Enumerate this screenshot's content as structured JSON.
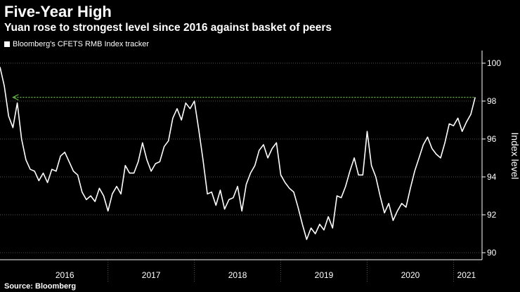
{
  "colors": {
    "background": "#000000",
    "series_line": "#ffffff",
    "grid": "#555555",
    "arrow": "#6cc04a"
  },
  "title": "Five-Year High",
  "subtitle": "Yuan rose to strongest level since 2016 against basket of peers",
  "source": "Source: Bloomberg",
  "chart_data": {
    "type": "line",
    "ylabel": "Index level",
    "ylim": [
      90,
      100
    ],
    "yticks": [
      "90",
      "92",
      "94",
      "96",
      "98",
      "100"
    ],
    "ytick_values": [
      90,
      92,
      94,
      96,
      98,
      100
    ],
    "xlim": [
      2015.75,
      2021.33
    ],
    "x_labels": [
      "2016",
      "2017",
      "2018",
      "2019",
      "2020",
      "2021"
    ],
    "x_label_positions": [
      2016.5,
      2017.5,
      2018.5,
      2019.5,
      2020.5,
      2021.15
    ],
    "x_separators": [
      2017.0,
      2018.0,
      2019.0,
      2020.0,
      2021.0
    ],
    "grid": "horizontal dotted",
    "reference_line": {
      "y": 98.2,
      "x_from": 2015.9,
      "x_to": 2021.25,
      "style": "dotted arrow"
    },
    "series": [
      {
        "name": "Bloomberg's CFETS RMB Index tracker",
        "x": [
          2015.75,
          2015.8,
          2015.85,
          2015.9,
          2015.95,
          2016.0,
          2016.05,
          2016.1,
          2016.15,
          2016.2,
          2016.25,
          2016.3,
          2016.35,
          2016.4,
          2016.45,
          2016.5,
          2016.55,
          2016.6,
          2016.65,
          2016.7,
          2016.75,
          2016.8,
          2016.85,
          2016.9,
          2016.95,
          2017.0,
          2017.05,
          2017.1,
          2017.15,
          2017.2,
          2017.25,
          2017.3,
          2017.35,
          2017.4,
          2017.45,
          2017.5,
          2017.55,
          2017.6,
          2017.65,
          2017.7,
          2017.75,
          2017.8,
          2017.85,
          2017.9,
          2017.95,
          2018.0,
          2018.05,
          2018.1,
          2018.15,
          2018.2,
          2018.25,
          2018.3,
          2018.35,
          2018.4,
          2018.45,
          2018.5,
          2018.55,
          2018.6,
          2018.65,
          2018.7,
          2018.75,
          2018.8,
          2018.85,
          2018.9,
          2018.95,
          2019.0,
          2019.05,
          2019.1,
          2019.15,
          2019.2,
          2019.25,
          2019.3,
          2019.35,
          2019.4,
          2019.45,
          2019.5,
          2019.55,
          2019.6,
          2019.65,
          2019.7,
          2019.75,
          2019.8,
          2019.85,
          2019.9,
          2019.95,
          2020.0,
          2020.05,
          2020.1,
          2020.15,
          2020.2,
          2020.25,
          2020.3,
          2020.35,
          2020.4,
          2020.45,
          2020.5,
          2020.55,
          2020.6,
          2020.65,
          2020.7,
          2020.75,
          2020.8,
          2020.85,
          2020.9,
          2020.95,
          2021.0,
          2021.05,
          2021.1,
          2021.15,
          2021.2,
          2021.25
        ],
        "values": [
          99.8,
          98.8,
          97.2,
          96.6,
          97.9,
          96.0,
          94.9,
          94.4,
          94.3,
          93.8,
          94.2,
          93.7,
          94.4,
          94.3,
          95.1,
          95.3,
          94.8,
          94.3,
          94.1,
          93.2,
          92.8,
          93.0,
          92.7,
          93.4,
          93.0,
          92.2,
          93.1,
          93.5,
          93.1,
          94.6,
          94.2,
          94.2,
          94.8,
          95.8,
          94.9,
          94.3,
          94.7,
          94.8,
          95.6,
          95.9,
          97.1,
          97.6,
          97.0,
          97.9,
          97.6,
          98.0,
          96.5,
          94.9,
          93.1,
          93.2,
          92.5,
          93.3,
          92.3,
          92.8,
          92.9,
          93.5,
          92.2,
          93.6,
          94.2,
          94.6,
          95.4,
          95.7,
          95.0,
          95.5,
          95.8,
          94.1,
          93.7,
          93.4,
          93.2,
          92.4,
          91.5,
          90.7,
          91.3,
          91.0,
          91.5,
          91.2,
          91.9,
          91.3,
          93.0,
          92.9,
          93.5,
          94.3,
          95.0,
          94.1,
          94.1,
          96.4,
          94.6,
          94.0,
          93.0,
          92.1,
          92.6,
          91.7,
          92.2,
          92.6,
          92.4,
          93.4,
          94.3,
          95.0,
          95.7,
          96.1,
          95.5,
          95.2,
          95.0,
          95.8,
          96.8,
          96.7,
          97.1,
          96.4,
          96.9,
          97.3,
          98.2
        ]
      }
    ]
  }
}
